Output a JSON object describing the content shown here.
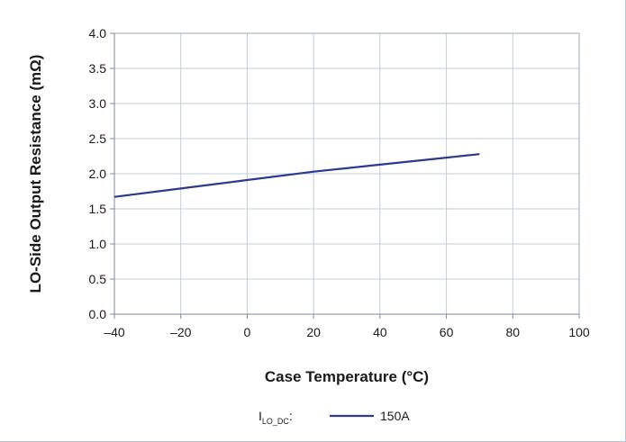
{
  "chart_data": {
    "type": "line",
    "title": "",
    "xlabel": "Case Temperature (°C)",
    "ylabel": "LO-Side Output Resistance (mΩ)",
    "xlim": [
      -40,
      100
    ],
    "ylim": [
      0,
      4
    ],
    "x_ticks": [
      -40,
      -20,
      0,
      20,
      40,
      60,
      80,
      100
    ],
    "x_tick_labels": [
      "–40",
      "–20",
      "0",
      "20",
      "40",
      "60",
      "80",
      "100"
    ],
    "y_ticks": [
      0,
      0.5,
      1,
      1.5,
      2,
      2.5,
      3,
      3.5,
      4
    ],
    "y_tick_labels": [
      "0.0",
      "0.5",
      "1.0",
      "1.5",
      "2.0",
      "2.5",
      "3.0",
      "3.5",
      "4.0"
    ],
    "grid": true,
    "legend": {
      "placement": "bottom-center",
      "title_main": "I",
      "title_sub": "LO_DC",
      "title_suffix": ":"
    },
    "series": [
      {
        "name": "150A",
        "color": "#2b3a8f",
        "x": [
          -40,
          -20,
          0,
          20,
          40,
          60,
          70
        ],
        "y": [
          1.67,
          1.79,
          1.91,
          2.03,
          2.13,
          2.23,
          2.28
        ]
      }
    ]
  }
}
